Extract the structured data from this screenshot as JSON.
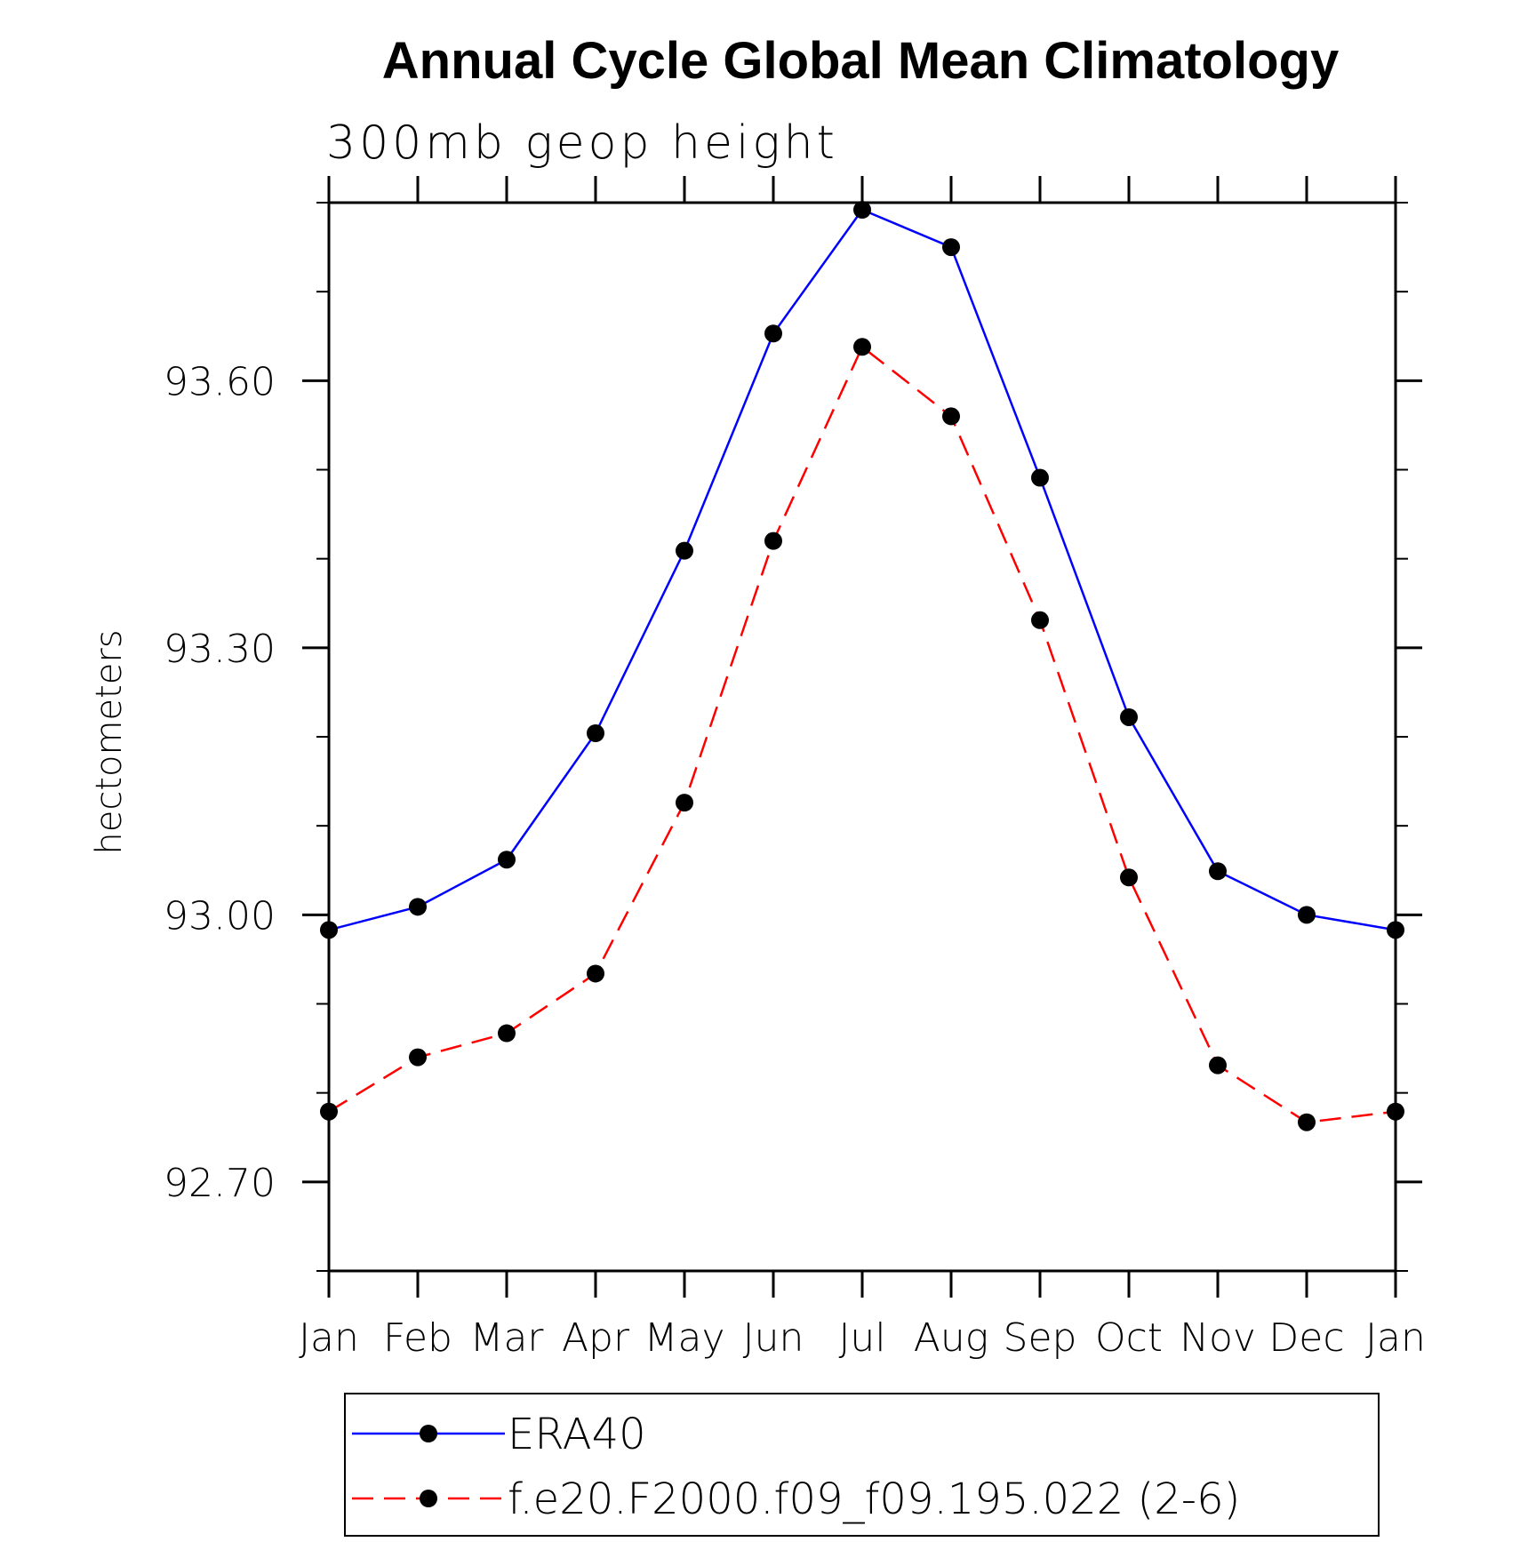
{
  "chart_data": {
    "type": "line",
    "title": "Annual Cycle Global Mean Climatology",
    "subtitle": "300mb geop height",
    "xlabel": "",
    "ylabel": "hectometers",
    "categories": [
      "Jan",
      "Feb",
      "Mar",
      "Apr",
      "May",
      "Jun",
      "Jul",
      "Aug",
      "Sep",
      "Oct",
      "Nov",
      "Dec",
      "Jan"
    ],
    "yticks": [
      92.7,
      93.0,
      93.3,
      93.6
    ],
    "ytick_labels": [
      "92.70",
      "93.00",
      "93.30",
      "93.60"
    ],
    "ylim": [
      92.6,
      93.8
    ],
    "grid": false,
    "legend_position": "bottom",
    "series": [
      {
        "name": "ERA40",
        "color": "#0000ff",
        "line_style": "solid",
        "marker": "filled-circle",
        "values": [
          92.983,
          93.009,
          93.062,
          93.204,
          93.409,
          93.653,
          93.792,
          93.75,
          93.491,
          93.222,
          93.049,
          93.0,
          92.983
        ]
      },
      {
        "name": "f.e20.F2000.f09_f09.195.022 (2-6)",
        "color": "#ff0000",
        "line_style": "dashed",
        "marker": "filled-circle",
        "values": [
          92.779,
          92.84,
          92.867,
          92.934,
          93.126,
          93.42,
          93.638,
          93.56,
          93.331,
          93.042,
          92.831,
          92.767,
          92.779
        ]
      }
    ]
  }
}
